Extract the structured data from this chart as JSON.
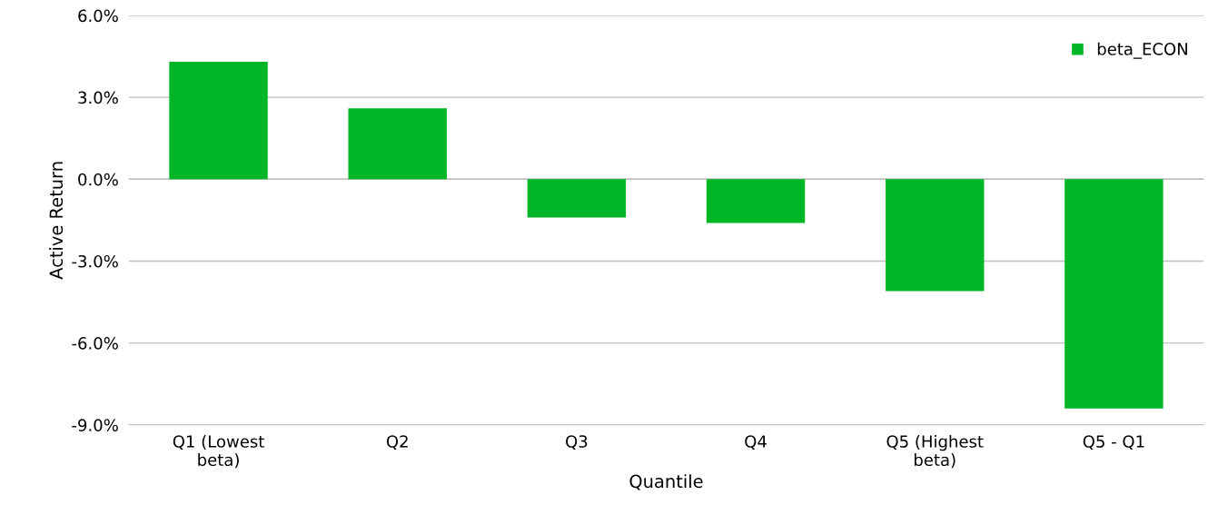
{
  "chart_data": {
    "type": "bar",
    "xlabel": "Quantile",
    "ylabel": "Active Return",
    "categories": [
      "Q1 (Lowest beta)",
      "Q2",
      "Q3",
      "Q4",
      "Q5 (Highest beta)",
      "Q5 - Q1"
    ],
    "series": [
      {
        "name": "beta_ECON",
        "color": "#00b526",
        "values": [
          4.3,
          2.6,
          -1.4,
          -1.6,
          -4.1,
          -8.4
        ]
      }
    ],
    "ylim": [
      -9,
      6
    ],
    "yticks": [
      {
        "value": -9,
        "label": "-9.0%"
      },
      {
        "value": -6,
        "label": "-6.0%"
      },
      {
        "value": -3,
        "label": "-3.0%"
      },
      {
        "value": 0,
        "label": "0.0%"
      },
      {
        "value": 3,
        "label": "3.0%"
      },
      {
        "value": 6,
        "label": "6.0%"
      }
    ],
    "grid": "y",
    "legend": "top right"
  }
}
